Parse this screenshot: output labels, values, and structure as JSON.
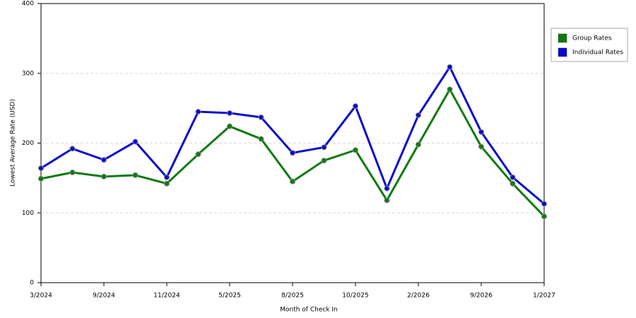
{
  "chart_data": {
    "type": "line",
    "x_label": "Month of Check In",
    "y_label": "Lowest Average Rate (USD)",
    "categories": [
      "3/2024",
      null,
      "9/2024",
      null,
      "11/2024",
      null,
      "5/2025",
      null,
      "8/2025",
      null,
      "10/2025",
      null,
      "2/2026",
      null,
      "9/2026",
      null,
      "1/2027"
    ],
    "series": [
      {
        "name": "Group Rates",
        "color": "#0e7a0e",
        "values": [
          149,
          158,
          152,
          154,
          142,
          184,
          224,
          206,
          145,
          175,
          190,
          118,
          198,
          277,
          195,
          142,
          95
        ]
      },
      {
        "name": "Individual Rates",
        "color": "#0a0ad0",
        "values": [
          164,
          192,
          176,
          202,
          151,
          245,
          243,
          237,
          186,
          194,
          253,
          135,
          240,
          309,
          216,
          151,
          113
        ]
      }
    ],
    "ylim": [
      0,
      400
    ],
    "yticks": [
      0,
      100,
      200,
      300,
      400
    ],
    "grid": true
  }
}
